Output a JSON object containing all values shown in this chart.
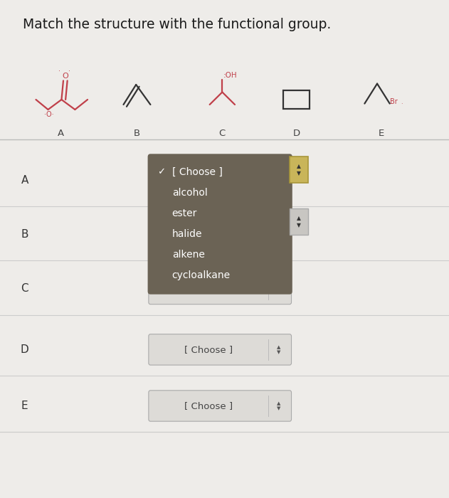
{
  "title": "Match the structure with the functional group.",
  "bg_color": "#eeece9",
  "title_fontsize": 13.5,
  "row_labels": [
    "A",
    "B",
    "C",
    "D",
    "E"
  ],
  "dropdown_text": "[ Choose ]",
  "dropdown_options": [
    "[ Choose ]",
    "alcohol",
    "ester",
    "halide",
    "alkene",
    "cycloalkane"
  ],
  "dropdown_bg": "#6b6355",
  "dropdown_text_color": "#ffffff",
  "choose_bg": "#dddbd7",
  "choose_border": "#aaaaaa",
  "row_divider_color": "#cccccc",
  "struct_red": "#c0404a",
  "struct_black": "#333333",
  "label_color": "#444444"
}
